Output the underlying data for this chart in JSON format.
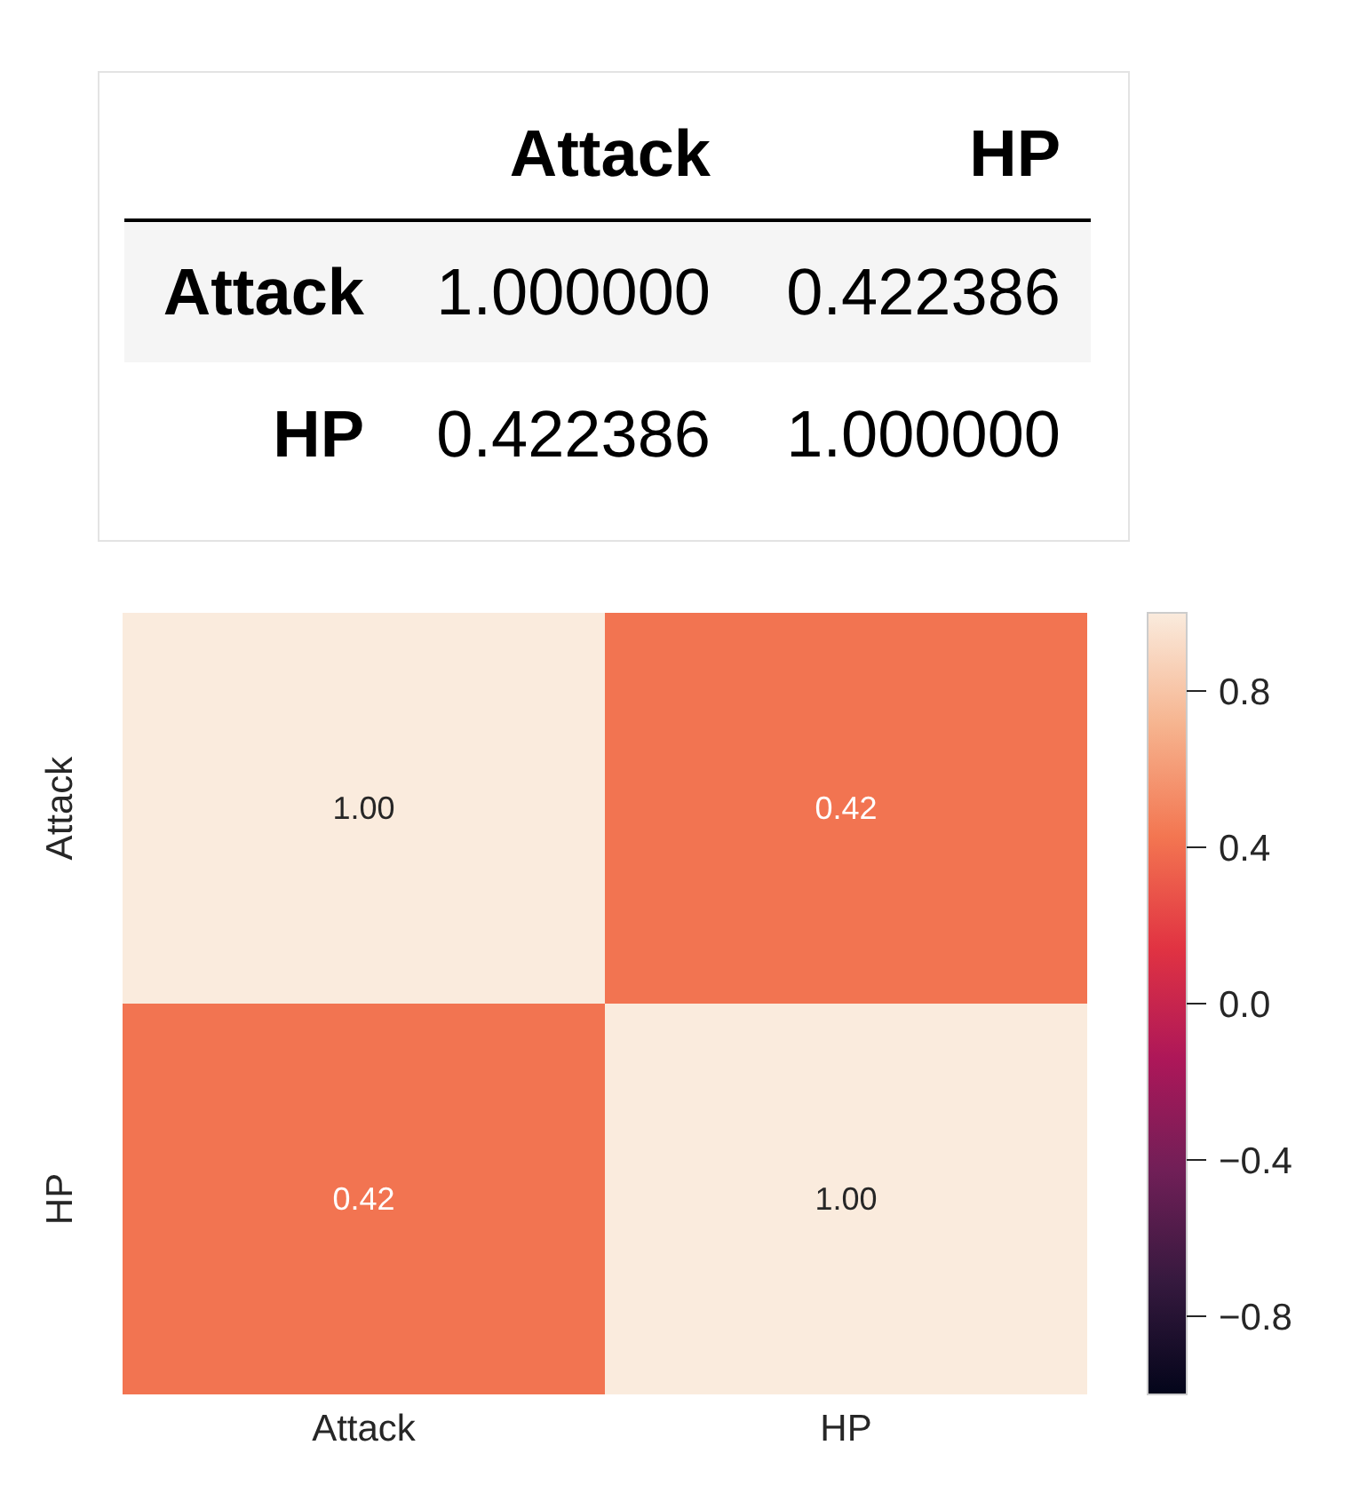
{
  "chart_data": [
    {
      "type": "other",
      "categories": [
        "Attack",
        "HP"
      ],
      "y_categories": [
        "Attack",
        "HP"
      ],
      "cell_labels": [
        [
          "1.000000",
          "0.422386"
        ],
        [
          "0.422386",
          "1.000000"
        ]
      ]
    },
    {
      "type": "heatmap",
      "categories": [
        "Attack",
        "HP"
      ],
      "y_categories": [
        "Attack",
        "HP"
      ],
      "cells": [
        [
          1,
          0.42
        ],
        [
          0.42,
          1
        ]
      ],
      "cell_labels": [
        [
          "1.00",
          "0.42"
        ],
        [
          "0.42",
          "1.00"
        ]
      ],
      "clim": [
        -1,
        1
      ],
      "cticks": [
        {
          "value": -0.8,
          "label": "−0.8"
        },
        {
          "value": -0.4,
          "label": "−0.4"
        },
        {
          "value": 0,
          "label": "0.0"
        },
        0.4,
        0.8
      ]
    }
  ]
}
